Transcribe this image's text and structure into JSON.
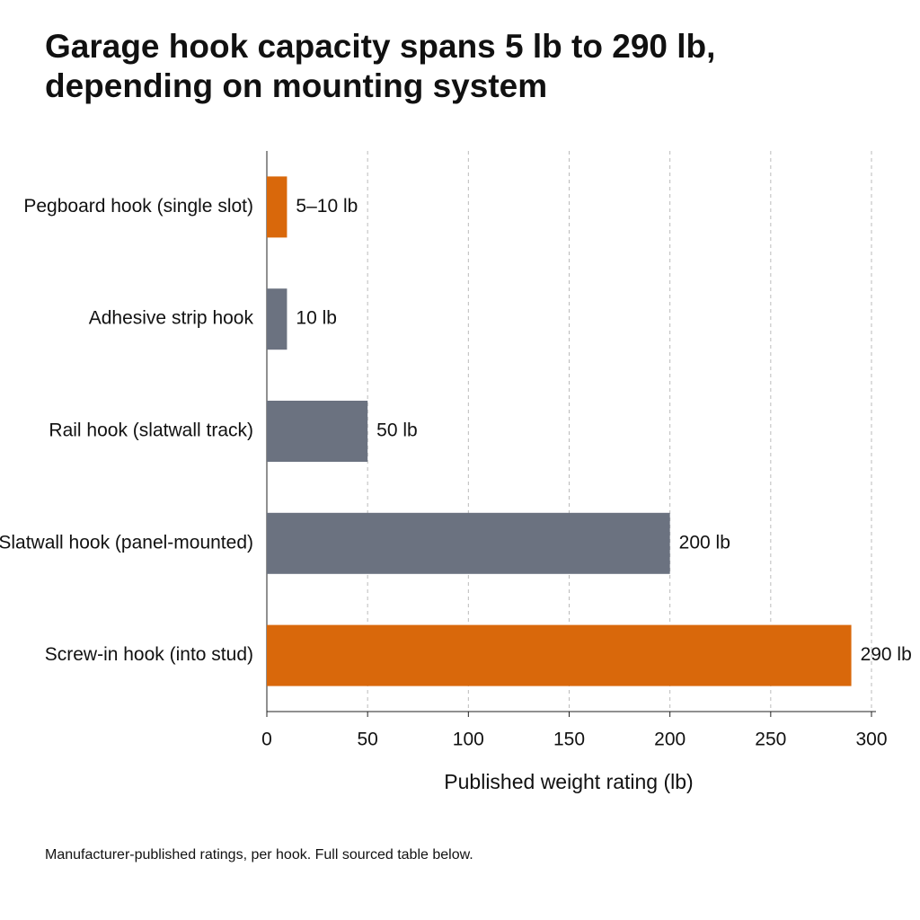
{
  "chart_data": {
    "type": "hbar",
    "title": "Garage hook capacity spans 5 lb to 290 lb, depending on mounting system",
    "categories": [
      "Pegboard hook (single slot)",
      "Adhesive strip hook",
      "Rail hook (slatwall track)",
      "Slatwall hook (panel-mounted)",
      "Screw-in hook (into stud)"
    ],
    "values": [
      10,
      10,
      50,
      200,
      290
    ],
    "value_labels": [
      "5–10 lb",
      "10 lb",
      "50 lb",
      "200 lb",
      "290 lb"
    ],
    "colors": [
      "#d9680b",
      "#6b7280",
      "#6b7280",
      "#6b7280",
      "#d9680b"
    ],
    "xlim": [
      0,
      300
    ],
    "xticks": [
      0,
      50,
      100,
      150,
      200,
      250,
      300
    ],
    "grid": true,
    "xlabel": "Published weight rating (lb)",
    "note": "Manufacturer-published ratings, per hook. Full sourced table below."
  }
}
